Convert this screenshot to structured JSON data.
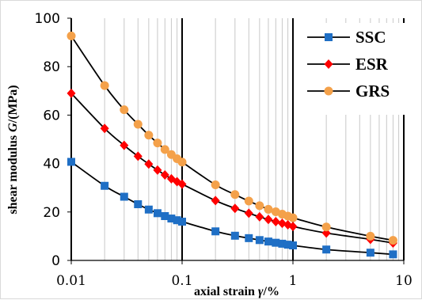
{
  "chart_data": {
    "type": "line",
    "x_scale": "log",
    "xlim": [
      0.01,
      10
    ],
    "ylim": [
      0,
      100
    ],
    "x_ticks": [
      "0.01",
      "0.1",
      "1",
      "10"
    ],
    "y_ticks": [
      "0",
      "20",
      "40",
      "60",
      "80",
      "100"
    ],
    "ylabel_parts": [
      "shear modulus ",
      "G",
      "/(MPa)"
    ],
    "xlabel_parts": [
      "axial strain ",
      "γ",
      "/%"
    ],
    "grid": "log-vertical",
    "legend_position": "top-right",
    "series": [
      {
        "name": "SSC",
        "color": "#1f6fc5",
        "marker": "square",
        "x": [
          0.01,
          0.02,
          0.03,
          0.04,
          0.05,
          0.06,
          0.07,
          0.08,
          0.09,
          0.1,
          0.2,
          0.3,
          0.4,
          0.5,
          0.6,
          0.7,
          0.8,
          0.9,
          1,
          2,
          5,
          8
        ],
        "y": [
          40.7,
          30.8,
          26.3,
          23.2,
          21.0,
          19.5,
          18.3,
          17.3,
          16.6,
          16.0,
          12.0,
          10.2,
          9.2,
          8.4,
          7.8,
          7.3,
          6.9,
          6.5,
          6.2,
          4.5,
          3.2,
          2.5
        ]
      },
      {
        "name": "ESR",
        "color": "#ff0000",
        "marker": "diamond",
        "x": [
          0.01,
          0.02,
          0.03,
          0.04,
          0.05,
          0.06,
          0.07,
          0.08,
          0.09,
          0.1,
          0.2,
          0.3,
          0.4,
          0.5,
          0.6,
          0.7,
          0.8,
          0.9,
          1,
          2,
          5,
          8
        ],
        "y": [
          69.0,
          54.5,
          47.5,
          43.0,
          39.8,
          37.3,
          35.3,
          33.7,
          32.5,
          31.5,
          24.7,
          21.5,
          19.5,
          18.0,
          16.9,
          16.0,
          15.3,
          14.7,
          14.0,
          11.3,
          8.7,
          7.2
        ]
      },
      {
        "name": "GRS",
        "color": "#f4a14a",
        "marker": "circle",
        "x": [
          0.01,
          0.02,
          0.03,
          0.04,
          0.05,
          0.06,
          0.07,
          0.08,
          0.09,
          0.1,
          0.2,
          0.3,
          0.4,
          0.5,
          0.6,
          0.7,
          0.8,
          0.9,
          1,
          2,
          5,
          8
        ],
        "y": [
          92.7,
          72.2,
          62.2,
          56.2,
          51.7,
          48.5,
          45.8,
          43.7,
          42.0,
          40.6,
          31.2,
          27.2,
          24.5,
          22.6,
          21.1,
          20.1,
          19.1,
          18.3,
          17.6,
          13.8,
          10.0,
          8.3
        ]
      }
    ]
  }
}
